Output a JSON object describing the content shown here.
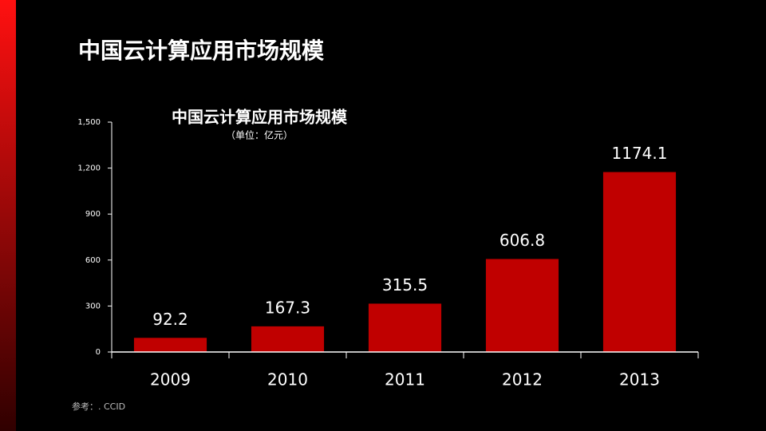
{
  "slide_title": "中国云计算应用市场规模",
  "source": "参考：. CCID",
  "chart_data": {
    "type": "bar",
    "title": "中国云计算应用市场规模",
    "subtitle": "（单位：亿元）",
    "categories": [
      "2009",
      "2010",
      "2011",
      "2012",
      "2013"
    ],
    "values": [
      92.2,
      167.3,
      315.5,
      606.8,
      1174.1
    ],
    "color": "#c00000",
    "ylim": [
      0,
      1500
    ],
    "yticks": [
      0,
      300,
      600,
      900,
      {
        "value": 1200,
        "label": "1,200"
      },
      {
        "value": 1500,
        "label": "1,500"
      }
    ],
    "grid": false
  }
}
